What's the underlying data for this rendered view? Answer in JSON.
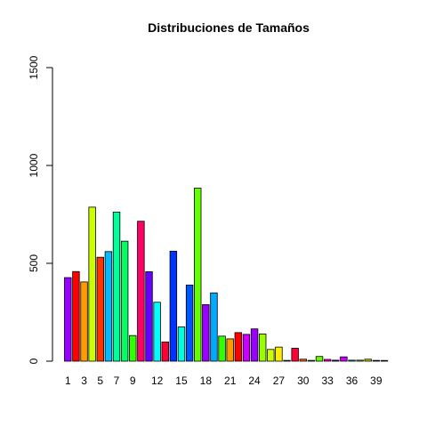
{
  "chart_data": {
    "type": "bar",
    "title": "Distribuciones de Tamaños",
    "xlabel": "",
    "ylabel": "",
    "ylim": [
      0,
      1500
    ],
    "y_ticks": [
      0,
      500,
      1000,
      1500
    ],
    "categories": [
      "1",
      "2",
      "3",
      "4",
      "5",
      "6",
      "7",
      "8",
      "9",
      "10",
      "11",
      "12",
      "13",
      "14",
      "15",
      "16",
      "17",
      "18",
      "19",
      "20",
      "21",
      "22",
      "23",
      "24",
      "25",
      "26",
      "27",
      "28",
      "29",
      "30",
      "31",
      "32",
      "33",
      "34",
      "35",
      "36",
      "37",
      "38",
      "39",
      "40"
    ],
    "x_tick_labels_shown": [
      "1",
      "3",
      "5",
      "7",
      "9",
      "12",
      "15",
      "18",
      "21",
      "24",
      "27",
      "30",
      "33",
      "36",
      "39"
    ],
    "values": [
      427,
      458,
      405,
      787,
      531,
      560,
      762,
      613,
      131,
      715,
      457,
      301,
      98,
      562,
      175,
      389,
      884,
      289,
      349,
      128,
      114,
      146,
      137,
      165,
      139,
      60,
      72,
      4,
      66,
      10,
      4,
      24,
      9,
      5,
      22,
      5,
      5,
      10,
      4,
      1
    ],
    "colors": [
      "#9900FF",
      "#FF0000",
      "#FF9900",
      "#CCFF00",
      "#FF3300",
      "#00BBFF",
      "#00FF99",
      "#00FF66",
      "#33FF00",
      "#FF0066",
      "#6600FF",
      "#00FFFF",
      "#FF0033",
      "#0033FF",
      "#00FFDD",
      "#0055FF",
      "#66FF00",
      "#9900FF",
      "#00AAFF",
      "#33FF00",
      "#FF9900",
      "#FF0000",
      "#CC00FF",
      "#9900FF",
      "#99FF00",
      "#CCFF00",
      "#FFEE00",
      "#00FF33",
      "#FF0033",
      "#FF6600",
      "#00FF00",
      "#66FF00",
      "#FF00CC",
      "#3300FF",
      "#CC00FF",
      "#00CCFF",
      "#99FF00",
      "#CCCC00",
      "#6600FF",
      "#9900FF"
    ],
    "grid": false,
    "legend": "none"
  }
}
